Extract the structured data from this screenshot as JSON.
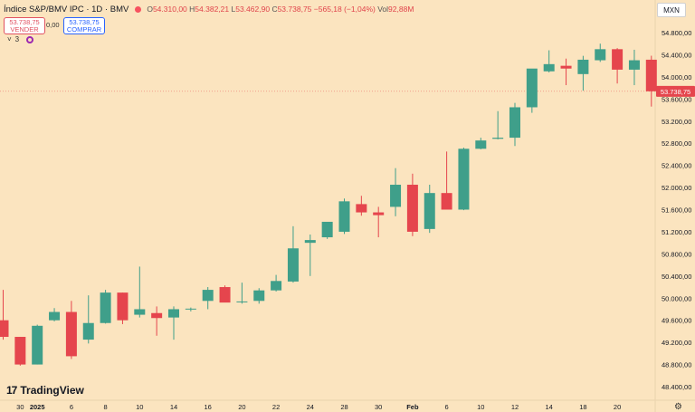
{
  "header": {
    "title": "Índice S&P/BMV IPC · 1D · BMV",
    "o_label": "O",
    "o_value": "54.310,00",
    "h_label": "H",
    "h_value": "54.382,21",
    "l_label": "L",
    "l_value": "53.462,90",
    "c_label": "C",
    "c_value": "53.738,75",
    "change": "−565,18 (−1,04%)",
    "vol_label": "Vol",
    "vol_value": "92,88M",
    "currency": "MXN"
  },
  "trade": {
    "sell_price": "53.738,75",
    "sell_label": "VENDER",
    "buy_price": "53.738,75",
    "buy_label": "COMPRAR",
    "spread": "0,00"
  },
  "indicators": {
    "count": "3"
  },
  "logo": {
    "mark": "17",
    "text": "TradingView"
  },
  "colors": {
    "up": "#3f9f8a",
    "down": "#e5454d",
    "background": "#fbe4bf",
    "last_price": "#e5454d"
  },
  "icons": {
    "settings": "gear-icon",
    "chevron": "chevron-down-icon",
    "visibility": "eye-circle-icon"
  },
  "chart_data": {
    "type": "candlestick",
    "ylim": [
      48400,
      55100
    ],
    "yticks": [
      48400,
      48800,
      49200,
      49600,
      50000,
      50400,
      50800,
      51200,
      51600,
      52000,
      52400,
      52800,
      53200,
      53600,
      54000,
      54400,
      54800
    ],
    "ytick_labels": [
      "48.400,00",
      "48.800,00",
      "49.200,00",
      "49.600,00",
      "50.000,00",
      "50.400,00",
      "50.800,00",
      "51.200,00",
      "51.600,00",
      "52.000,00",
      "52.400,00",
      "52.800,00",
      "53.200,00",
      "53.600,00",
      "54.000,00",
      "54.400,00",
      "54.800,00"
    ],
    "last_price": 53738.75,
    "last_price_label": "53.738,75",
    "xticks": [
      {
        "i": 1,
        "label": "30"
      },
      {
        "i": 2,
        "label": "2025"
      },
      {
        "i": 4,
        "label": "6"
      },
      {
        "i": 6,
        "label": "8"
      },
      {
        "i": 8,
        "label": "10"
      },
      {
        "i": 10,
        "label": "14"
      },
      {
        "i": 12,
        "label": "16"
      },
      {
        "i": 14,
        "label": "20"
      },
      {
        "i": 16,
        "label": "22"
      },
      {
        "i": 18,
        "label": "24"
      },
      {
        "i": 20,
        "label": "28"
      },
      {
        "i": 22,
        "label": "30"
      },
      {
        "i": 24,
        "label": "Feb"
      },
      {
        "i": 26,
        "label": "6"
      },
      {
        "i": 28,
        "label": "10"
      },
      {
        "i": 30,
        "label": "12"
      },
      {
        "i": 32,
        "label": "14"
      },
      {
        "i": 34,
        "label": "18"
      },
      {
        "i": 36,
        "label": "20"
      }
    ],
    "candles": [
      {
        "o": 49600,
        "h": 50150,
        "l": 49250,
        "c": 49300
      },
      {
        "o": 49300,
        "h": 49300,
        "l": 48780,
        "c": 48800
      },
      {
        "o": 48800,
        "h": 49520,
        "l": 48800,
        "c": 49500
      },
      {
        "o": 49600,
        "h": 49820,
        "l": 49580,
        "c": 49750
      },
      {
        "o": 49750,
        "h": 49950,
        "l": 48900,
        "c": 48950
      },
      {
        "o": 49250,
        "h": 50050,
        "l": 49180,
        "c": 49550
      },
      {
        "o": 49550,
        "h": 50150,
        "l": 49540,
        "c": 50100
      },
      {
        "o": 50100,
        "h": 50100,
        "l": 49530,
        "c": 49600
      },
      {
        "o": 49700,
        "h": 50570,
        "l": 49650,
        "c": 49800
      },
      {
        "o": 49730,
        "h": 49850,
        "l": 49320,
        "c": 49640
      },
      {
        "o": 49650,
        "h": 49850,
        "l": 49250,
        "c": 49800
      },
      {
        "o": 49800,
        "h": 49830,
        "l": 49760,
        "c": 49810
      },
      {
        "o": 49950,
        "h": 50200,
        "l": 49800,
        "c": 50150
      },
      {
        "o": 50200,
        "h": 50230,
        "l": 49980,
        "c": 49920
      },
      {
        "o": 49930,
        "h": 50280,
        "l": 49900,
        "c": 49940
      },
      {
        "o": 49950,
        "h": 50180,
        "l": 49900,
        "c": 50140
      },
      {
        "o": 50140,
        "h": 50420,
        "l": 50120,
        "c": 50310
      },
      {
        "o": 50300,
        "h": 51300,
        "l": 50280,
        "c": 50900
      },
      {
        "o": 51000,
        "h": 51150,
        "l": 50400,
        "c": 51050
      },
      {
        "o": 51100,
        "h": 51350,
        "l": 51070,
        "c": 51380
      },
      {
        "o": 51200,
        "h": 51800,
        "l": 51160,
        "c": 51750
      },
      {
        "o": 51700,
        "h": 51850,
        "l": 51490,
        "c": 51550
      },
      {
        "o": 51550,
        "h": 51650,
        "l": 51100,
        "c": 51500
      },
      {
        "o": 51650,
        "h": 52350,
        "l": 51480,
        "c": 52050
      },
      {
        "o": 52050,
        "h": 52250,
        "l": 51120,
        "c": 51200
      },
      {
        "o": 51250,
        "h": 52050,
        "l": 51180,
        "c": 51900
      },
      {
        "o": 51900,
        "h": 52650,
        "l": 51600,
        "c": 51600
      },
      {
        "o": 51600,
        "h": 52720,
        "l": 51590,
        "c": 52700
      },
      {
        "o": 52700,
        "h": 52900,
        "l": 52690,
        "c": 52850
      },
      {
        "o": 52880,
        "h": 53380,
        "l": 52870,
        "c": 52900
      },
      {
        "o": 52900,
        "h": 53530,
        "l": 52750,
        "c": 53450
      },
      {
        "o": 53450,
        "h": 54100,
        "l": 53350,
        "c": 54150
      },
      {
        "o": 54100,
        "h": 54480,
        "l": 54080,
        "c": 54230
      },
      {
        "o": 54200,
        "h": 54330,
        "l": 53850,
        "c": 54150
      },
      {
        "o": 54050,
        "h": 54380,
        "l": 53750,
        "c": 54310
      },
      {
        "o": 54300,
        "h": 54600,
        "l": 54270,
        "c": 54500
      },
      {
        "o": 54500,
        "h": 54520,
        "l": 53880,
        "c": 54130
      },
      {
        "o": 54130,
        "h": 54490,
        "l": 53850,
        "c": 54300
      },
      {
        "o": 54310,
        "h": 54382,
        "l": 53463,
        "c": 53739
      }
    ]
  }
}
